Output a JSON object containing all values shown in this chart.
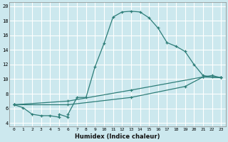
{
  "title": "",
  "xlabel": "Humidex (Indice chaleur)",
  "bg_color": "#cce8ee",
  "grid_color": "#ffffff",
  "line_color": "#2d7d78",
  "xlim": [
    -0.5,
    23.5
  ],
  "ylim": [
    3.5,
    20.5
  ],
  "xticks": [
    0,
    1,
    2,
    3,
    4,
    5,
    6,
    7,
    8,
    9,
    10,
    11,
    12,
    13,
    14,
    15,
    16,
    17,
    18,
    19,
    20,
    21,
    22,
    23
  ],
  "yticks": [
    4,
    6,
    8,
    10,
    12,
    14,
    16,
    18,
    20
  ],
  "series": [
    {
      "x": [
        0,
        1,
        2,
        3,
        4,
        5,
        5,
        6,
        6,
        7,
        8,
        9,
        10,
        11,
        12,
        13,
        14,
        15,
        16,
        17,
        18,
        19,
        20,
        21,
        22,
        23
      ],
      "y": [
        6.5,
        6.1,
        5.2,
        5.0,
        5.0,
        4.8,
        5.2,
        4.8,
        5.2,
        7.5,
        7.5,
        11.7,
        14.9,
        18.5,
        19.2,
        19.3,
        19.2,
        18.4,
        17.0,
        15.0,
        14.5,
        13.8,
        12.0,
        10.5,
        10.3,
        10.2
      ]
    },
    {
      "x": [
        0,
        6,
        13,
        19,
        21,
        22,
        23
      ],
      "y": [
        6.5,
        6.5,
        7.5,
        9.0,
        10.3,
        10.5,
        10.2
      ]
    },
    {
      "x": [
        0,
        6,
        13,
        21,
        23
      ],
      "y": [
        6.5,
        7.0,
        8.5,
        10.3,
        10.2
      ]
    }
  ]
}
